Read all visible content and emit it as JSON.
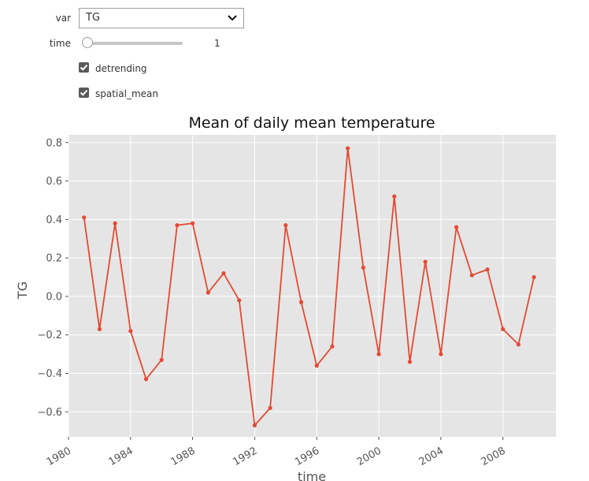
{
  "controls": {
    "var_label": "var",
    "var_value": "TG",
    "time_label": "time",
    "time_value": "1",
    "time_fraction": 0.0,
    "detrending_label": "detrending",
    "detrending_checked": true,
    "spatial_mean_label": "spatial_mean",
    "spatial_mean_checked": true
  },
  "chart_data": {
    "type": "line",
    "title": "Mean of daily mean temperature",
    "xlabel": "time",
    "ylabel": "TG",
    "xlim": [
      "1980-01-01",
      "2011-06-01"
    ],
    "ylim": [
      -0.73,
      0.84
    ],
    "grid": true,
    "background": "#e5e5e5",
    "line_color": "#e24a33",
    "x_ticks": [
      "1980",
      "1984",
      "1988",
      "1992",
      "1996",
      "2000",
      "2004",
      "2008"
    ],
    "y_ticks": [
      "0.8",
      "0.6",
      "0.4",
      "0.2",
      "0.0",
      "−0.2",
      "−0.4",
      "−0.6"
    ],
    "y_tick_values": [
      0.8,
      0.6,
      0.4,
      0.2,
      0.0,
      -0.2,
      -0.4,
      -0.6
    ],
    "series": [
      {
        "x": [
          "1981-01-01",
          "1982-01-01",
          "1983-01-01",
          "1984-01-01",
          "1985-01-01",
          "1986-01-01",
          "1987-01-01",
          "1988-01-01",
          "1989-01-01",
          "1990-01-01",
          "1991-01-01",
          "1992-01-01",
          "1993-01-01",
          "1994-01-01",
          "1995-01-01",
          "1996-01-01",
          "1997-01-01",
          "1998-01-01",
          "1999-01-01",
          "2000-01-01",
          "2001-01-01",
          "2002-01-01",
          "2003-01-01",
          "2004-01-01",
          "2005-01-01",
          "2006-01-01",
          "2007-01-01",
          "2008-01-01",
          "2009-01-01",
          "2010-01-01"
        ],
        "values": [
          0.41,
          -0.17,
          0.38,
          -0.18,
          -0.43,
          -0.33,
          0.37,
          0.38,
          0.02,
          0.12,
          -0.02,
          -0.67,
          -0.58,
          0.37,
          -0.03,
          -0.36,
          -0.26,
          0.77,
          0.15,
          -0.3,
          0.52,
          -0.34,
          0.18,
          -0.3,
          0.36,
          0.11,
          0.14,
          -0.17,
          -0.25,
          0.1
        ]
      }
    ]
  }
}
